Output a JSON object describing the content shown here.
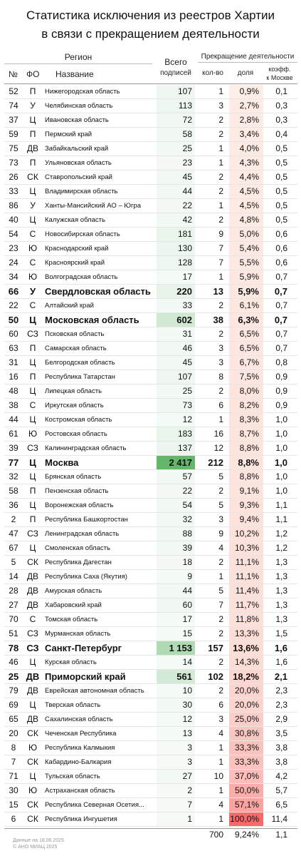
{
  "header": {
    "title_line1": "Статистика исключения из реестров Хартии",
    "title_line2": "в связи с прекращением деятельности",
    "region": "Регион",
    "num": "№",
    "fo": "ФО",
    "name": "Название",
    "total_line1": "Всего",
    "total_line2": "подписей",
    "termination": "Прекращение деятельности",
    "count": "кол-во",
    "share": "доля",
    "coef_line1": "коэфф.",
    "coef_line2": "к Москве"
  },
  "table": {
    "rows": [
      {
        "num": "52",
        "fo": "П",
        "name": "Нижегородская область",
        "total": "107",
        "count": "1",
        "share": "0,9%",
        "coef": "0,1"
      },
      {
        "num": "74",
        "fo": "У",
        "name": "Челябинская область",
        "total": "113",
        "count": "3",
        "share": "2,7%",
        "coef": "0,3"
      },
      {
        "num": "37",
        "fo": "Ц",
        "name": "Ивановская область",
        "total": "72",
        "count": "2",
        "share": "2,8%",
        "coef": "0,3"
      },
      {
        "num": "59",
        "fo": "П",
        "name": "Пермский край",
        "total": "58",
        "count": "2",
        "share": "3,4%",
        "coef": "0,4"
      },
      {
        "num": "75",
        "fo": "ДВ",
        "name": "Забайкальский край",
        "total": "25",
        "count": "1",
        "share": "4,0%",
        "coef": "0,5"
      },
      {
        "num": "73",
        "fo": "П",
        "name": "Ульяновская область",
        "total": "23",
        "count": "1",
        "share": "4,3%",
        "coef": "0,5"
      },
      {
        "num": "26",
        "fo": "СК",
        "name": "Ставропольский край",
        "total": "45",
        "count": "2",
        "share": "4,4%",
        "coef": "0,5"
      },
      {
        "num": "33",
        "fo": "Ц",
        "name": "Владимирская область",
        "total": "44",
        "count": "2",
        "share": "4,5%",
        "coef": "0,5"
      },
      {
        "num": "86",
        "fo": "У",
        "name": "Ханты-Мансийский АО – Югра",
        "total": "22",
        "count": "1",
        "share": "4,5%",
        "coef": "0,5"
      },
      {
        "num": "40",
        "fo": "Ц",
        "name": "Калужская область",
        "total": "42",
        "count": "2",
        "share": "4,8%",
        "coef": "0,5"
      },
      {
        "num": "54",
        "fo": "С",
        "name": "Новосибирская область",
        "total": "181",
        "count": "9",
        "share": "5,0%",
        "coef": "0,6"
      },
      {
        "num": "23",
        "fo": "Ю",
        "name": "Краснодарский край",
        "total": "130",
        "count": "7",
        "share": "5,4%",
        "coef": "0,6"
      },
      {
        "num": "24",
        "fo": "С",
        "name": "Красноярский край",
        "total": "128",
        "count": "7",
        "share": "5,5%",
        "coef": "0,6"
      },
      {
        "num": "34",
        "fo": "Ю",
        "name": "Волгоградская область",
        "total": "17",
        "count": "1",
        "share": "5,9%",
        "coef": "0,7"
      },
      {
        "num": "66",
        "fo": "У",
        "name": "Свердловская область",
        "total": "220",
        "count": "13",
        "share": "5,9%",
        "coef": "0,7",
        "bold": true
      },
      {
        "num": "22",
        "fo": "С",
        "name": "Алтайский край",
        "total": "33",
        "count": "2",
        "share": "6,1%",
        "coef": "0,7"
      },
      {
        "num": "50",
        "fo": "Ц",
        "name": "Московская область",
        "total": "602",
        "count": "38",
        "share": "6,3%",
        "coef": "0,7",
        "bold": true
      },
      {
        "num": "60",
        "fo": "СЗ",
        "name": "Псковская область",
        "total": "31",
        "count": "2",
        "share": "6,5%",
        "coef": "0,7"
      },
      {
        "num": "63",
        "fo": "П",
        "name": "Самарская область",
        "total": "46",
        "count": "3",
        "share": "6,5%",
        "coef": "0,7"
      },
      {
        "num": "31",
        "fo": "Ц",
        "name": "Белгородская область",
        "total": "45",
        "count": "3",
        "share": "6,7%",
        "coef": "0,8"
      },
      {
        "num": "16",
        "fo": "П",
        "name": "Республика Татарстан",
        "total": "107",
        "count": "8",
        "share": "7,5%",
        "coef": "0,9"
      },
      {
        "num": "48",
        "fo": "Ц",
        "name": "Липецкая область",
        "total": "25",
        "count": "2",
        "share": "8,0%",
        "coef": "0,9"
      },
      {
        "num": "38",
        "fo": "С",
        "name": "Иркутская область",
        "total": "73",
        "count": "6",
        "share": "8,2%",
        "coef": "0,9"
      },
      {
        "num": "44",
        "fo": "Ц",
        "name": "Костромская область",
        "total": "12",
        "count": "1",
        "share": "8,3%",
        "coef": "1,0"
      },
      {
        "num": "61",
        "fo": "Ю",
        "name": "Ростовская область",
        "total": "183",
        "count": "16",
        "share": "8,7%",
        "coef": "1,0"
      },
      {
        "num": "39",
        "fo": "СЗ",
        "name": "Калининградская область",
        "total": "137",
        "count": "12",
        "share": "8,8%",
        "coef": "1,0"
      },
      {
        "num": "77",
        "fo": "Ц",
        "name": "Москва",
        "total": "2 417",
        "count": "212",
        "share": "8,8%",
        "coef": "1,0",
        "bold": true
      },
      {
        "num": "32",
        "fo": "Ц",
        "name": "Брянская область",
        "total": "57",
        "count": "5",
        "share": "8,8%",
        "coef": "1,0"
      },
      {
        "num": "58",
        "fo": "П",
        "name": "Пензенская область",
        "total": "22",
        "count": "2",
        "share": "9,1%",
        "coef": "1,0"
      },
      {
        "num": "36",
        "fo": "Ц",
        "name": "Воронежская область",
        "total": "54",
        "count": "5",
        "share": "9,3%",
        "coef": "1,1"
      },
      {
        "num": "2",
        "fo": "П",
        "name": "Республика Башкортостан",
        "total": "32",
        "count": "3",
        "share": "9,4%",
        "coef": "1,1"
      },
      {
        "num": "47",
        "fo": "СЗ",
        "name": "Ленинградская область",
        "total": "88",
        "count": "9",
        "share": "10,2%",
        "coef": "1,2"
      },
      {
        "num": "67",
        "fo": "Ц",
        "name": "Смоленская область",
        "total": "39",
        "count": "4",
        "share": "10,3%",
        "coef": "1,2"
      },
      {
        "num": "5",
        "fo": "СК",
        "name": "Республика Дагестан",
        "total": "18",
        "count": "2",
        "share": "11,1%",
        "coef": "1,3"
      },
      {
        "num": "14",
        "fo": "ДВ",
        "name": "Республика Саха (Якутия)",
        "total": "9",
        "count": "1",
        "share": "11,1%",
        "coef": "1,3"
      },
      {
        "num": "28",
        "fo": "ДВ",
        "name": "Амурская область",
        "total": "44",
        "count": "5",
        "share": "11,4%",
        "coef": "1,3"
      },
      {
        "num": "27",
        "fo": "ДВ",
        "name": "Хабаровский край",
        "total": "60",
        "count": "7",
        "share": "11,7%",
        "coef": "1,3"
      },
      {
        "num": "70",
        "fo": "С",
        "name": "Томская область",
        "total": "17",
        "count": "2",
        "share": "11,8%",
        "coef": "1,3"
      },
      {
        "num": "51",
        "fo": "СЗ",
        "name": "Мурманская область",
        "total": "15",
        "count": "2",
        "share": "13,3%",
        "coef": "1,5"
      },
      {
        "num": "78",
        "fo": "СЗ",
        "name": "Санкт-Петербург",
        "total": "1 153",
        "count": "157",
        "share": "13,6%",
        "coef": "1,6",
        "bold": true
      },
      {
        "num": "46",
        "fo": "Ц",
        "name": "Курская область",
        "total": "14",
        "count": "2",
        "share": "14,3%",
        "coef": "1,6"
      },
      {
        "num": "25",
        "fo": "ДВ",
        "name": "Приморский край",
        "total": "561",
        "count": "102",
        "share": "18,2%",
        "coef": "2,1",
        "bold": true
      },
      {
        "num": "79",
        "fo": "ДВ",
        "name": "Еврейская автономная область",
        "total": "10",
        "count": "2",
        "share": "20,0%",
        "coef": "2,3"
      },
      {
        "num": "69",
        "fo": "Ц",
        "name": "Тверская область",
        "total": "30",
        "count": "6",
        "share": "20,0%",
        "coef": "2,3"
      },
      {
        "num": "65",
        "fo": "ДВ",
        "name": "Сахалинская область",
        "total": "12",
        "count": "3",
        "share": "25,0%",
        "coef": "2,9"
      },
      {
        "num": "20",
        "fo": "СК",
        "name": "Чеченская Республика",
        "total": "13",
        "count": "4",
        "share": "30,8%",
        "coef": "3,5"
      },
      {
        "num": "8",
        "fo": "Ю",
        "name": "Республика Калмыкия",
        "total": "3",
        "count": "1",
        "share": "33,3%",
        "coef": "3,8"
      },
      {
        "num": "7",
        "fo": "СК",
        "name": "Кабардино-Балкария",
        "total": "3",
        "count": "1",
        "share": "33,3%",
        "coef": "3,8"
      },
      {
        "num": "71",
        "fo": "Ц",
        "name": "Тульская область",
        "total": "27",
        "count": "10",
        "share": "37,0%",
        "coef": "4,2"
      },
      {
        "num": "30",
        "fo": "Ю",
        "name": "Астраханская область",
        "total": "2",
        "count": "1",
        "share": "50,0%",
        "coef": "5,7"
      },
      {
        "num": "15",
        "fo": "СК",
        "name": "Республика Северная Осетия...",
        "total": "7",
        "count": "4",
        "share": "57,1%",
        "coef": "6,5"
      },
      {
        "num": "6",
        "fo": "СК",
        "name": "Республика Ингушетия",
        "total": "1",
        "count": "1",
        "share": "100,0%",
        "coef": "11,4"
      }
    ],
    "total": {
      "count": "700",
      "share": "9,24%",
      "coef": "1,1"
    }
  },
  "footer": {
    "date": "Данные на 18.06.2025",
    "copyright": "© АНО МИАЦ 2025"
  }
}
